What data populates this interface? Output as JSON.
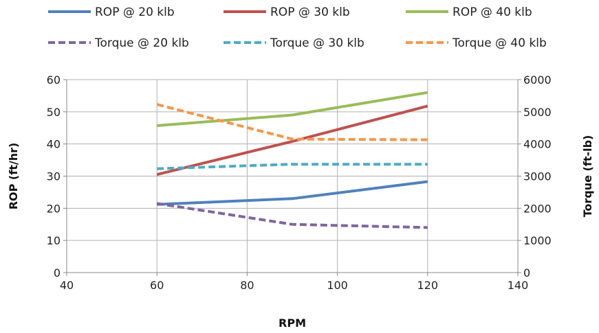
{
  "chart_data": {
    "type": "line",
    "xlabel": "RPM",
    "ylabel": "ROP (ft/hr)",
    "y2label": "Torque (ft-lb)",
    "xlim": [
      40,
      140
    ],
    "x_ticks": [
      40,
      60,
      80,
      100,
      120,
      140
    ],
    "ylim": [
      0,
      60
    ],
    "y_ticks": [
      0,
      10,
      20,
      30,
      40,
      50,
      60
    ],
    "y2lim": [
      0,
      6000
    ],
    "y2_ticks": [
      0,
      1000,
      2000,
      3000,
      4000,
      5000,
      6000
    ],
    "grid": true,
    "legend_position": "top",
    "series": [
      {
        "name": "ROP @ 20 klb",
        "axis": "left",
        "style": "solid",
        "color": "#4f81bd",
        "x": [
          60,
          90,
          120
        ],
        "y": [
          21.2,
          23,
          28.3
        ]
      },
      {
        "name": "ROP @ 30 klb",
        "axis": "left",
        "style": "solid",
        "color": "#c0504d",
        "x": [
          60,
          90,
          120
        ],
        "y": [
          30.5,
          40.8,
          51.8
        ]
      },
      {
        "name": "ROP @ 40 klb",
        "axis": "left",
        "style": "solid",
        "color": "#9bbb59",
        "x": [
          60,
          90,
          120
        ],
        "y": [
          45.7,
          49,
          56
        ]
      },
      {
        "name": "Torque @ 20 klb",
        "axis": "right",
        "style": "dashed",
        "color": "#8064a2",
        "x": [
          60,
          90,
          120
        ],
        "y": [
          2150,
          1500,
          1400
        ]
      },
      {
        "name": "Torque @ 30 klb",
        "axis": "right",
        "style": "dashed",
        "color": "#4bacc6",
        "x": [
          60,
          90,
          120
        ],
        "y": [
          3230,
          3370,
          3370
        ]
      },
      {
        "name": "Torque @ 40 klb",
        "axis": "right",
        "style": "dashed",
        "color": "#f79646",
        "x": [
          60,
          90,
          120
        ],
        "y": [
          5230,
          4150,
          4130
        ]
      }
    ]
  }
}
